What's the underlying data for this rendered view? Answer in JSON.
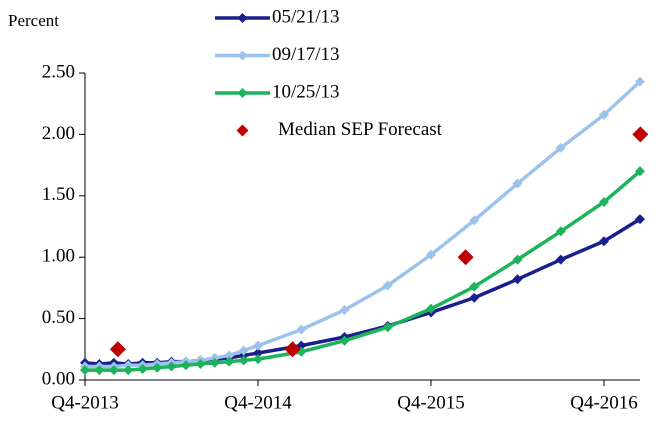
{
  "chart_data": {
    "type": "line",
    "y_label": "Percent",
    "x": [
      2013.75,
      2013.833,
      2013.917,
      2014.0,
      2014.083,
      2014.167,
      2014.25,
      2014.333,
      2014.417,
      2014.5,
      2014.583,
      2014.667,
      2014.75,
      2015.0,
      2015.25,
      2015.5,
      2015.75,
      2016.0,
      2016.25,
      2016.5,
      2016.75,
      2016.958
    ],
    "series": [
      {
        "name": "05/21/13",
        "color": "#1a1f8c",
        "values": [
          0.14,
          0.13,
          0.14,
          0.13,
          0.14,
          0.14,
          0.15,
          0.15,
          0.16,
          0.17,
          0.18,
          0.2,
          0.22,
          0.28,
          0.35,
          0.44,
          0.55,
          0.67,
          0.82,
          0.98,
          1.13,
          1.31
        ]
      },
      {
        "name": "09/17/13",
        "color": "#9cc3ec",
        "values": [
          0.11,
          0.11,
          0.11,
          0.12,
          0.12,
          0.13,
          0.14,
          0.15,
          0.16,
          0.18,
          0.2,
          0.24,
          0.28,
          0.41,
          0.57,
          0.77,
          1.02,
          1.3,
          1.6,
          1.89,
          2.16,
          2.43
        ]
      },
      {
        "name": "10/25/13",
        "color": "#1db35a",
        "values": [
          0.08,
          0.08,
          0.08,
          0.08,
          0.09,
          0.1,
          0.11,
          0.12,
          0.13,
          0.14,
          0.15,
          0.16,
          0.17,
          0.23,
          0.32,
          0.43,
          0.58,
          0.76,
          0.98,
          1.21,
          1.45,
          1.7
        ]
      }
    ],
    "scatter": {
      "name": "Median SEP Forecast",
      "color": "#c00000",
      "x": [
        2013.94,
        2014.95,
        2015.95,
        2016.96
      ],
      "values": [
        0.25,
        0.25,
        1.0,
        2.0
      ]
    },
    "xlim": [
      2013.75,
      2016.958
    ],
    "xticks": [
      {
        "value": 2013.75,
        "label": "Q4-2013"
      },
      {
        "value": 2014.75,
        "label": "Q4-2014"
      },
      {
        "value": 2015.75,
        "label": "Q4-2015"
      },
      {
        "value": 2016.75,
        "label": "Q4-2016"
      }
    ],
    "ylim": [
      0,
      2.5
    ],
    "yticks": [
      {
        "value": 0,
        "label": "0.00"
      },
      {
        "value": 0.5,
        "label": "0.50"
      },
      {
        "value": 1,
        "label": "1.00"
      },
      {
        "value": 1.5,
        "label": "1.50"
      },
      {
        "value": 2,
        "label": "2.00"
      },
      {
        "value": 2.5,
        "label": "2.50"
      }
    ],
    "legend": "upper left"
  }
}
